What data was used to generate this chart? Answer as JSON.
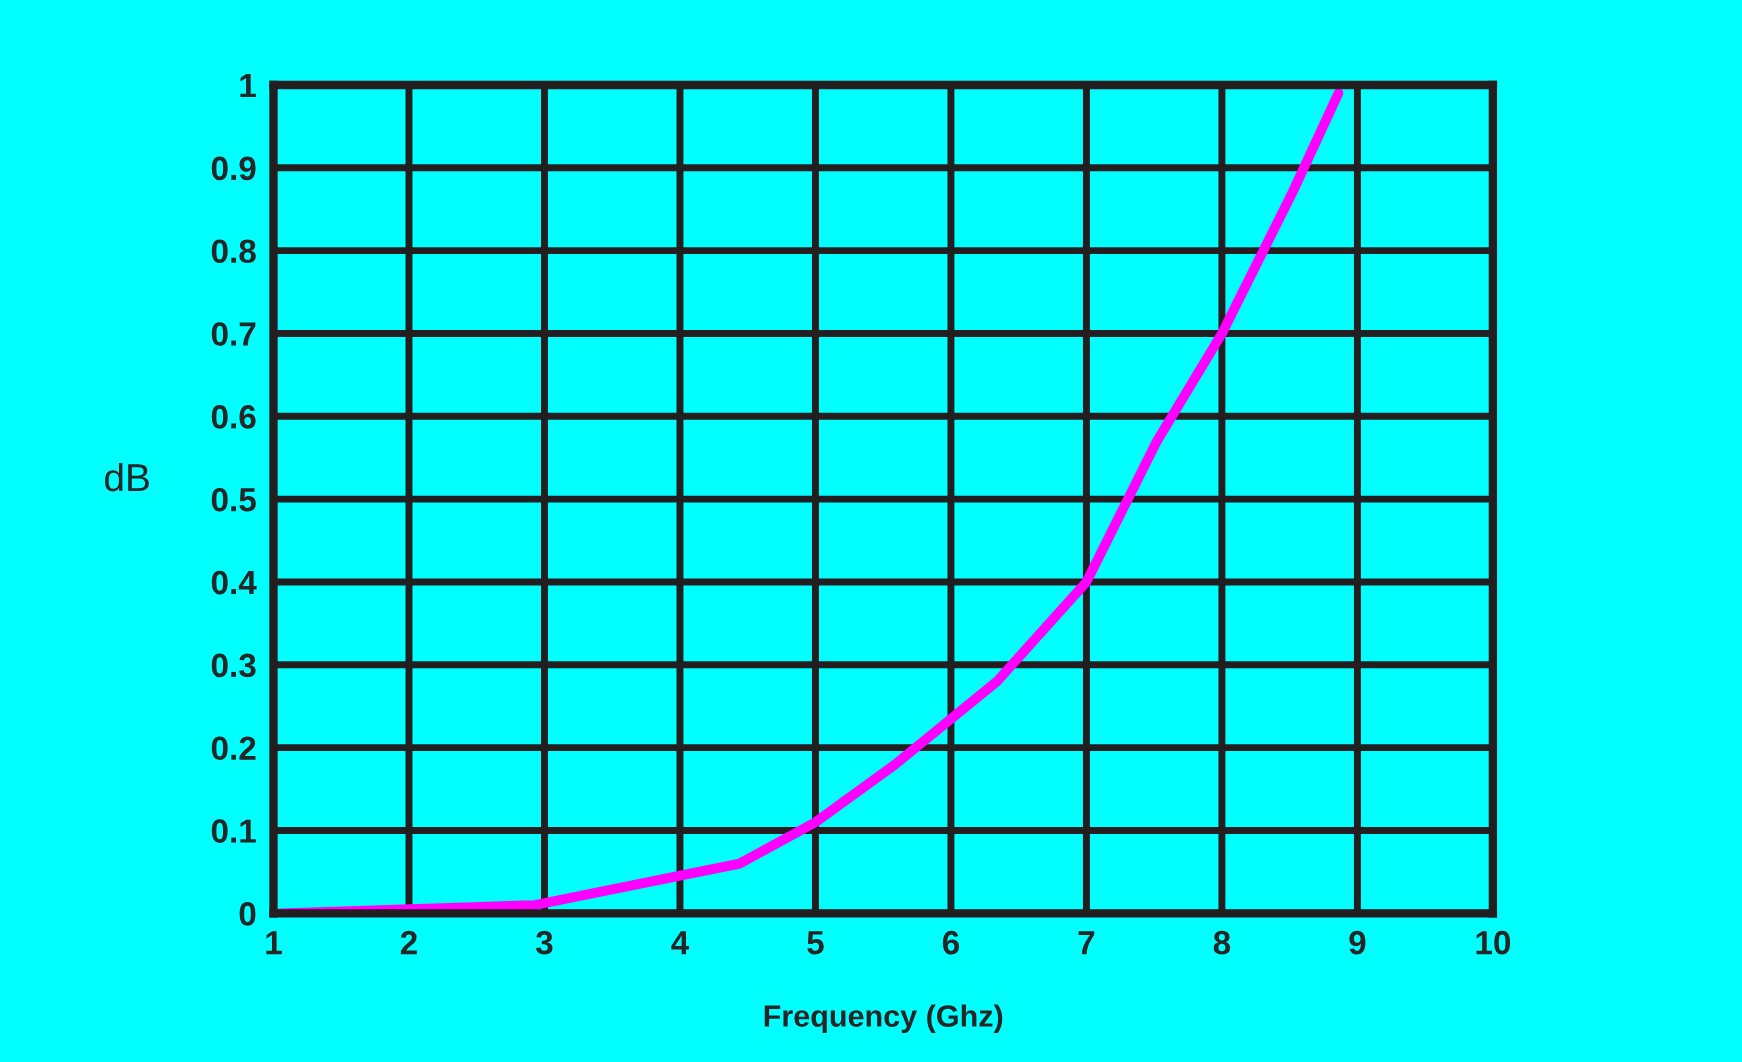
{
  "chart_data": {
    "type": "line",
    "xlabel": "Frequency (Ghz)",
    "ylabel": "dB",
    "x": [
      1.05,
      2.93,
      4.44,
      5,
      5.59,
      6.34,
      7,
      7.52,
      8,
      8.52,
      8.86
    ],
    "series": [
      {
        "color": "#ff00ff",
        "values": [
          0,
          0.01,
          0.06,
          0.11,
          0.18,
          0.28,
          0.4,
          0.57,
          0.7,
          0.87,
          0.99
        ]
      }
    ],
    "xlim": [
      1,
      10
    ],
    "xticks": [
      1,
      2,
      3,
      4,
      5,
      6,
      7,
      8,
      9,
      10
    ],
    "ylim": [
      0,
      1
    ],
    "yticks": [
      0,
      0.1,
      0.2,
      0.3,
      0.4,
      0.5,
      0.6,
      0.7,
      0.8,
      0.9,
      1
    ],
    "grid": true,
    "line_style": "solid",
    "marker": "none"
  }
}
